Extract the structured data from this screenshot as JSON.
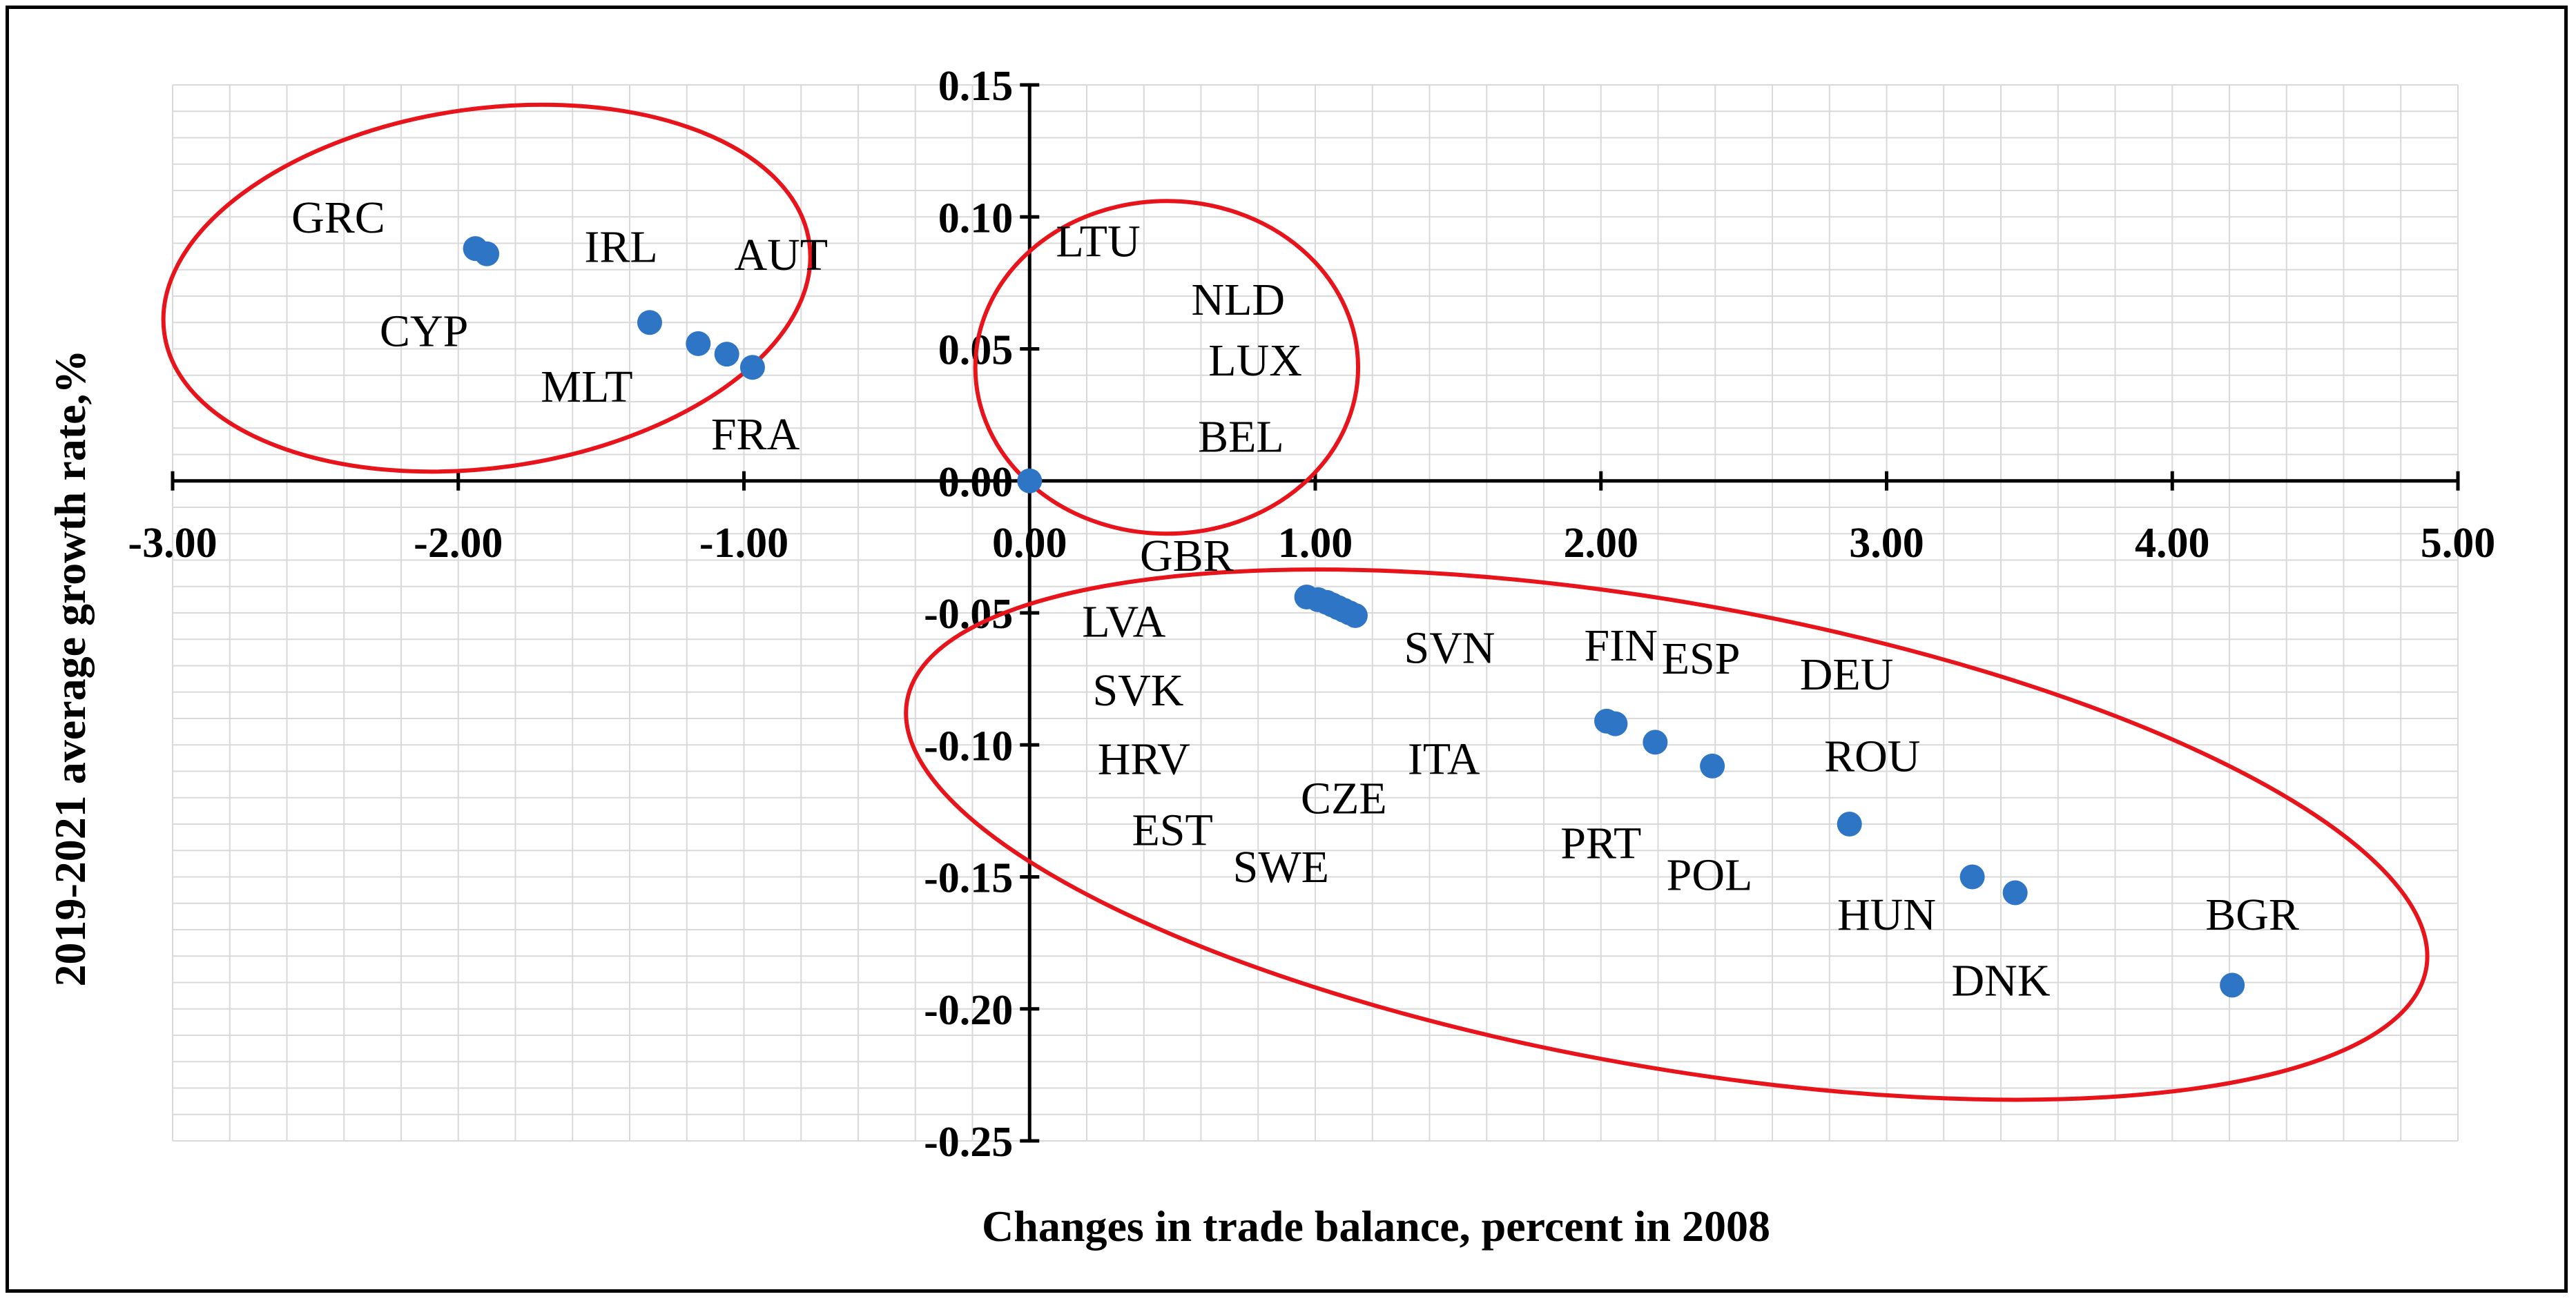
{
  "chart_data": {
    "type": "scatter",
    "title": "",
    "xlabel": "Changes in trade balance, percent in 2008",
    "ylabel": "2019-2021 average growth rate,%",
    "xlim": [
      -3,
      5
    ],
    "ylim": [
      -0.25,
      0.15
    ],
    "x_ticks": [
      -3,
      -2,
      -1,
      0,
      1,
      2,
      3,
      4,
      5
    ],
    "x_tick_labels": [
      "-3.00",
      "-2.00",
      "-1.00",
      "0.00",
      "1.00",
      "2.00",
      "3.00",
      "4.00",
      "5.00"
    ],
    "y_ticks": [
      0.15,
      0.1,
      0.05,
      0.0,
      -0.05,
      -0.1,
      -0.15,
      -0.2,
      -0.25
    ],
    "y_tick_labels": [
      "0.15",
      "0.10",
      "0.05",
      "0.00",
      "-0.05",
      "-0.10",
      "-0.15",
      "-0.20",
      "-0.25"
    ],
    "grid": true,
    "marker_color": "#2e75c6",
    "ellipse_color": "#e8141b",
    "points": [
      {
        "x": -1.94,
        "y": 0.088
      },
      {
        "x": -1.9,
        "y": 0.086
      },
      {
        "x": -1.33,
        "y": 0.06
      },
      {
        "x": -1.16,
        "y": 0.052
      },
      {
        "x": -1.06,
        "y": 0.048
      },
      {
        "x": -0.97,
        "y": 0.043
      },
      {
        "x": 0.0,
        "y": 0.0
      },
      {
        "x": 0.97,
        "y": -0.044
      },
      {
        "x": 1.01,
        "y": -0.045
      },
      {
        "x": 1.04,
        "y": -0.046
      },
      {
        "x": 1.06,
        "y": -0.047
      },
      {
        "x": 1.08,
        "y": -0.048
      },
      {
        "x": 1.1,
        "y": -0.049
      },
      {
        "x": 1.12,
        "y": -0.05
      },
      {
        "x": 1.14,
        "y": -0.051
      },
      {
        "x": 2.02,
        "y": -0.091
      },
      {
        "x": 2.05,
        "y": -0.092
      },
      {
        "x": 2.19,
        "y": -0.099
      },
      {
        "x": 2.39,
        "y": -0.108
      },
      {
        "x": 2.87,
        "y": -0.13
      },
      {
        "x": 3.3,
        "y": -0.15
      },
      {
        "x": 3.45,
        "y": -0.156
      },
      {
        "x": 4.21,
        "y": -0.191
      }
    ],
    "country_labels": [
      {
        "text": "GRC",
        "x": -2.42,
        "y": 0.094
      },
      {
        "text": "CYP",
        "x": -2.12,
        "y": 0.051
      },
      {
        "text": "IRL",
        "x": -1.43,
        "y": 0.083
      },
      {
        "text": "AUT",
        "x": -0.87,
        "y": 0.08
      },
      {
        "text": "MLT",
        "x": -1.55,
        "y": 0.03
      },
      {
        "text": "FRA",
        "x": -0.96,
        "y": 0.012
      },
      {
        "text": "LTU",
        "x": 0.24,
        "y": 0.085
      },
      {
        "text": "NLD",
        "x": 0.73,
        "y": 0.063
      },
      {
        "text": "LUX",
        "x": 0.79,
        "y": 0.04
      },
      {
        "text": "BEL",
        "x": 0.74,
        "y": 0.011
      },
      {
        "text": "GBR",
        "x": 0.55,
        "y": -0.034
      },
      {
        "text": "LVA",
        "x": 0.33,
        "y": -0.059
      },
      {
        "text": "SVK",
        "x": 0.38,
        "y": -0.085
      },
      {
        "text": "HRV",
        "x": 0.4,
        "y": -0.111
      },
      {
        "text": "EST",
        "x": 0.5,
        "y": -0.138
      },
      {
        "text": "SWE",
        "x": 0.88,
        "y": -0.152
      },
      {
        "text": "CZE",
        "x": 1.1,
        "y": -0.126
      },
      {
        "text": "ITA",
        "x": 1.45,
        "y": -0.111
      },
      {
        "text": "SVN",
        "x": 1.47,
        "y": -0.069
      },
      {
        "text": "FIN",
        "x": 2.07,
        "y": -0.068
      },
      {
        "text": "ESP",
        "x": 2.35,
        "y": -0.073
      },
      {
        "text": "DEU",
        "x": 2.86,
        "y": -0.079
      },
      {
        "text": "ROU",
        "x": 2.95,
        "y": -0.11
      },
      {
        "text": "PRT",
        "x": 2.0,
        "y": -0.143
      },
      {
        "text": "POL",
        "x": 2.38,
        "y": -0.155
      },
      {
        "text": "HUN",
        "x": 3.0,
        "y": -0.17
      },
      {
        "text": "DNK",
        "x": 3.4,
        "y": -0.195
      },
      {
        "text": "BGR",
        "x": 4.28,
        "y": -0.17
      }
    ],
    "ellipses": [
      {
        "cx": -1.9,
        "cy": 0.073,
        "rx": 1.14,
        "ry": 0.068,
        "rotate_deg": -8
      },
      {
        "cx": 0.48,
        "cy": 0.043,
        "rx": 0.67,
        "ry": 0.063,
        "rotate_deg": 0
      },
      {
        "cx": 2.23,
        "cy": -0.134,
        "rx": 2.7,
        "ry": 0.088,
        "rotate_deg": 10
      }
    ]
  }
}
